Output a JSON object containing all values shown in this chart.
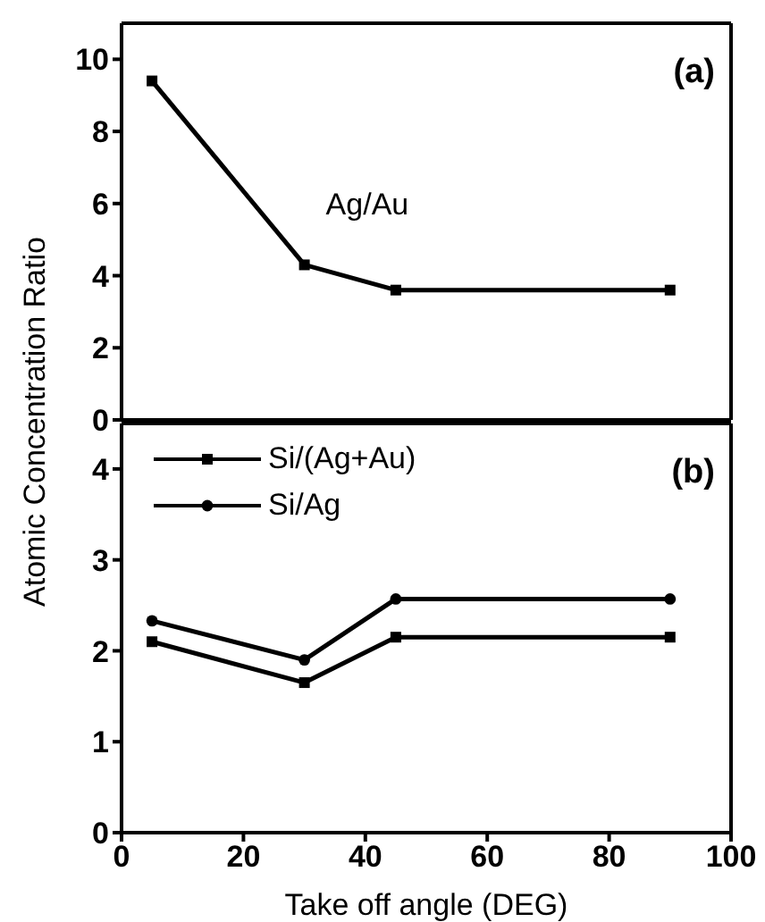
{
  "chart_data": [
    {
      "type": "line",
      "annotations": [
        "(a)"
      ],
      "x": [
        5,
        30,
        45,
        90
      ],
      "series": [
        {
          "name": "Ag/Au",
          "color": "#000000",
          "marker": "square",
          "values": [
            9.4,
            4.3,
            3.6,
            3.6
          ]
        }
      ],
      "xlim": [
        0,
        100
      ],
      "xticks": [
        0,
        20,
        40,
        60,
        80,
        100
      ],
      "ylim": [
        0,
        11
      ],
      "yticks": [
        0,
        2,
        4,
        6,
        8,
        10
      ],
      "tick_labels": "y",
      "grid": false,
      "legend": false,
      "line_style": "solid"
    },
    {
      "type": "line",
      "annotations": [
        "(b)"
      ],
      "xlabel": "Take off angle (DEG)",
      "ylabel": "Atomic Concentration Ratio",
      "x": [
        5,
        30,
        45,
        90
      ],
      "series": [
        {
          "name": "Si/(Ag+Au)",
          "color": "#000000",
          "marker": "square",
          "values": [
            2.1,
            1.65,
            2.15,
            2.15
          ]
        },
        {
          "name": "Si/Ag",
          "color": "#000000",
          "marker": "circle",
          "values": [
            2.33,
            1.9,
            2.57,
            2.57
          ]
        }
      ],
      "xlim": [
        0,
        100
      ],
      "xticks": [
        0,
        20,
        40,
        60,
        80,
        100
      ],
      "ylim": [
        0,
        4.5
      ],
      "yticks": [
        0,
        1,
        2,
        3,
        4
      ],
      "grid": false,
      "legend": "top left",
      "line_style": "solid"
    }
  ]
}
